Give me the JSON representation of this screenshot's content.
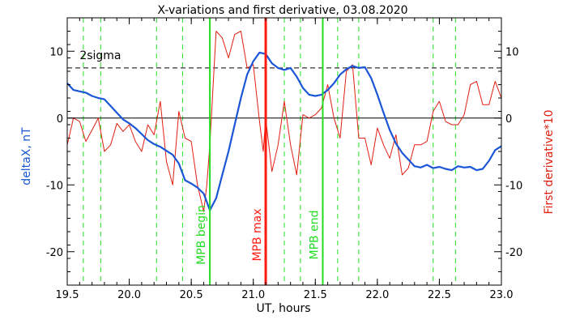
{
  "chart_data": {
    "type": "line",
    "title": "X-variations and first derivative, 03.08.2020",
    "xlabel": "UT, hours",
    "ylabel_left": "deltaX, nT",
    "ylabel_right": "First derivative*10",
    "xlim": [
      19.5,
      23.0
    ],
    "ylim": [
      -25,
      15
    ],
    "x_ticks": [
      "19.5",
      "20.0",
      "20.5",
      "21.0",
      "21.5",
      "22.0",
      "22.5",
      "23.0"
    ],
    "y_ticks": [
      "-20",
      "-10",
      "0",
      "10"
    ],
    "colors": {
      "deltaX": "#1a56d6",
      "derivative": "#e01f10",
      "mpb": "#22dd22",
      "mpb_max": "#ff1a10",
      "axes": "#000000"
    },
    "series": [
      {
        "name": "deltaX, nT",
        "x": [
          19.5,
          19.55,
          19.6,
          19.65,
          19.7,
          19.75,
          19.8,
          19.85,
          19.9,
          19.95,
          20.0,
          20.05,
          20.1,
          20.15,
          20.2,
          20.25,
          20.3,
          20.35,
          20.4,
          20.45,
          20.5,
          20.55,
          20.6,
          20.65,
          20.7,
          20.75,
          20.8,
          20.85,
          20.9,
          20.95,
          21.0,
          21.05,
          21.1,
          21.15,
          21.2,
          21.25,
          21.3,
          21.35,
          21.4,
          21.45,
          21.5,
          21.55,
          21.6,
          21.65,
          21.7,
          21.75,
          21.8,
          21.85,
          21.9,
          21.95,
          22.0,
          22.05,
          22.1,
          22.15,
          22.2,
          22.25,
          22.3,
          22.35,
          22.4,
          22.45,
          22.5,
          22.55,
          22.6,
          22.65,
          22.7,
          22.75,
          22.8,
          22.85,
          22.9,
          22.95,
          23.0
        ],
        "y": [
          5.2,
          4.2,
          4.0,
          3.8,
          3.3,
          3.0,
          2.8,
          1.8,
          0.8,
          -0.2,
          -0.8,
          -1.5,
          -2.4,
          -3.3,
          -3.9,
          -4.3,
          -4.9,
          -5.5,
          -6.8,
          -9.3,
          -9.8,
          -10.4,
          -11.3,
          -13.8,
          -12.0,
          -8.5,
          -5.0,
          -1.0,
          3.0,
          6.5,
          8.5,
          9.8,
          9.6,
          8.2,
          7.5,
          7.2,
          7.5,
          6.2,
          4.5,
          3.5,
          3.3,
          3.5,
          4.2,
          5.2,
          6.5,
          7.3,
          7.8,
          7.5,
          7.6,
          6.0,
          3.5,
          0.8,
          -1.8,
          -3.8,
          -5.2,
          -6.2,
          -7.2,
          -7.4,
          -7.0,
          -7.5,
          -7.3,
          -7.6,
          -7.8,
          -7.2,
          -7.4,
          -7.3,
          -7.8,
          -7.6,
          -6.4,
          -4.8,
          -4.2
        ]
      },
      {
        "name": "First derivative*10",
        "x": [
          19.5,
          19.55,
          19.6,
          19.65,
          19.7,
          19.75,
          19.8,
          19.85,
          19.9,
          19.95,
          20.0,
          20.05,
          20.1,
          20.15,
          20.2,
          20.25,
          20.3,
          20.35,
          20.4,
          20.45,
          20.5,
          20.55,
          20.6,
          20.625,
          20.65,
          20.7,
          20.75,
          20.8,
          20.85,
          20.9,
          20.95,
          21.0,
          21.05,
          21.08,
          21.1,
          21.15,
          21.2,
          21.25,
          21.3,
          21.35,
          21.4,
          21.45,
          21.5,
          21.55,
          21.6,
          21.65,
          21.7,
          21.75,
          21.8,
          21.85,
          21.9,
          21.95,
          22.0,
          22.05,
          22.1,
          22.15,
          22.2,
          22.25,
          22.3,
          22.35,
          22.4,
          22.45,
          22.5,
          22.55,
          22.6,
          22.65,
          22.7,
          22.75,
          22.8,
          22.85,
          22.9,
          22.95,
          23.0
        ],
        "y": [
          -4.0,
          0.0,
          -0.5,
          -3.5,
          -1.8,
          0.0,
          -5.0,
          -4.0,
          -0.8,
          -2.0,
          -1.0,
          -3.5,
          -5.0,
          -1.0,
          -2.5,
          2.5,
          -6.5,
          -10.0,
          1.0,
          -3.0,
          -3.5,
          -10.0,
          -14.0,
          -10.0,
          -4.0,
          13.0,
          12.0,
          9.0,
          12.5,
          13.0,
          7.5,
          8.0,
          -0.5,
          -5.0,
          0.0,
          -8.0,
          -4.0,
          2.5,
          -4.0,
          -8.5,
          0.5,
          0.0,
          0.5,
          1.5,
          5.0,
          0.0,
          -3.0,
          7.0,
          8.0,
          -3.0,
          -3.0,
          -7.0,
          -1.5,
          -4.0,
          -6.0,
          -2.5,
          -8.5,
          -7.5,
          -4.0,
          -4.0,
          -3.5,
          1.0,
          2.5,
          -0.5,
          -1.0,
          -1.0,
          0.5,
          5.0,
          5.5,
          2.0,
          2.0,
          5.5,
          3.0
        ]
      }
    ],
    "labels": {
      "sigma": "2sigma",
      "mpb_begin": "MPB begin",
      "mpb_max": "MPB max",
      "mpb_end": "MPB end"
    },
    "sigma_level": 7.5,
    "markers": {
      "mpb_begin": 20.65,
      "mpb_max": 21.1,
      "mpb_end": 21.56
    },
    "dashed_verticals": [
      19.63,
      19.77,
      20.22,
      20.43,
      21.25,
      21.38,
      21.68,
      21.85,
      22.45,
      22.63
    ]
  }
}
